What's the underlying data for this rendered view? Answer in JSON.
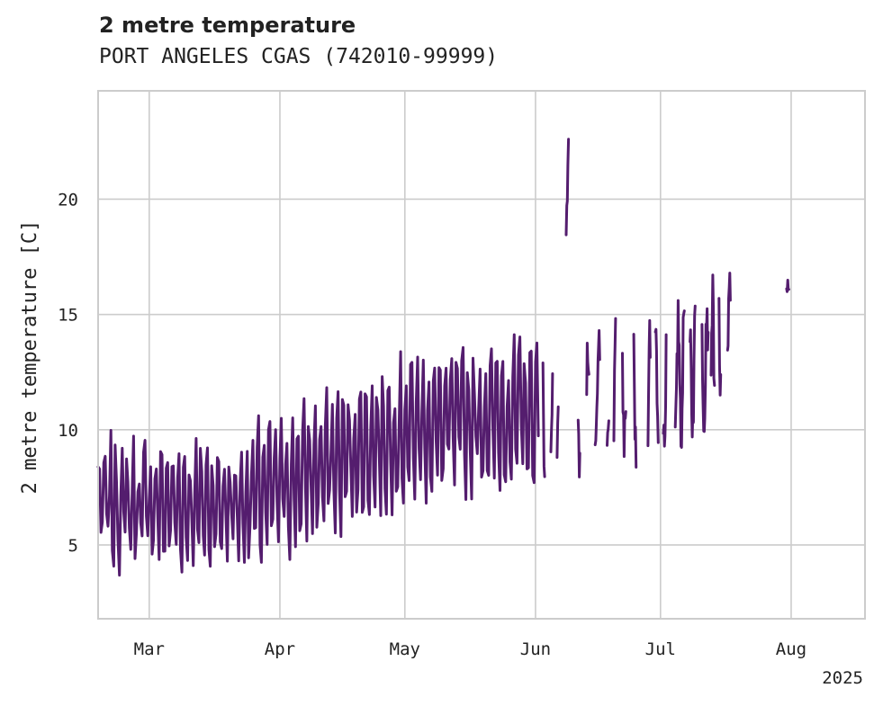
{
  "chart_data": {
    "type": "line",
    "title": "2 metre temperature",
    "subtitle": "PORT ANGELES CGAS (742010-99999)",
    "ylabel": "2 metre temperature [C]",
    "xlabel": "",
    "year_label": "2025",
    "ylim": [
      1.8,
      24.7
    ],
    "yticks": [
      5,
      10,
      15,
      20
    ],
    "x_range_days": [
      0,
      135
    ],
    "xticks": [
      {
        "label": "Mar",
        "day": 9
      },
      {
        "label": "Apr",
        "day": 32
      },
      {
        "label": "May",
        "day": 54
      },
      {
        "label": "Jun",
        "day": 77
      },
      {
        "label": "Jul",
        "day": 99
      },
      {
        "label": "Aug",
        "day": 122
      }
    ],
    "grid": true,
    "series": [
      {
        "name": "2 metre temperature",
        "color": "#541d6e",
        "seed": 7,
        "segments": [
          {
            "start": 0,
            "end": 77.5,
            "step": 0.25
          },
          {
            "start": 78.3,
            "end": 78.6,
            "step": 0.1
          },
          {
            "start": 79.7,
            "end": 80.0,
            "step": 0.1
          },
          {
            "start": 80.8,
            "end": 81.0,
            "step": 0.1
          },
          {
            "start": 82.4,
            "end": 82.8,
            "step": 0.1
          },
          {
            "start": 84.5,
            "end": 84.8,
            "step": 0.1
          },
          {
            "start": 86.0,
            "end": 86.4,
            "step": 0.1
          },
          {
            "start": 87.5,
            "end": 88.3,
            "step": 0.1
          },
          {
            "start": 89.6,
            "end": 89.9,
            "step": 0.1
          },
          {
            "start": 90.8,
            "end": 91.1,
            "step": 0.1
          },
          {
            "start": 92.3,
            "end": 92.9,
            "step": 0.1
          },
          {
            "start": 94.3,
            "end": 94.7,
            "step": 0.1
          },
          {
            "start": 96.8,
            "end": 97.2,
            "step": 0.1
          },
          {
            "start": 98.1,
            "end": 98.6,
            "step": 0.1
          },
          {
            "start": 99.5,
            "end": 100.0,
            "step": 0.1
          },
          {
            "start": 101.6,
            "end": 103.2,
            "step": 0.1
          },
          {
            "start": 104.2,
            "end": 105.1,
            "step": 0.1
          },
          {
            "start": 106.3,
            "end": 107.4,
            "step": 0.1
          },
          {
            "start": 107.9,
            "end": 108.5,
            "step": 0.1
          },
          {
            "start": 109.3,
            "end": 109.6,
            "step": 0.1
          },
          {
            "start": 110.8,
            "end": 111.3,
            "step": 0.1
          },
          {
            "start": 121.2,
            "end": 121.6,
            "step": 0.1
          }
        ]
      }
    ]
  }
}
